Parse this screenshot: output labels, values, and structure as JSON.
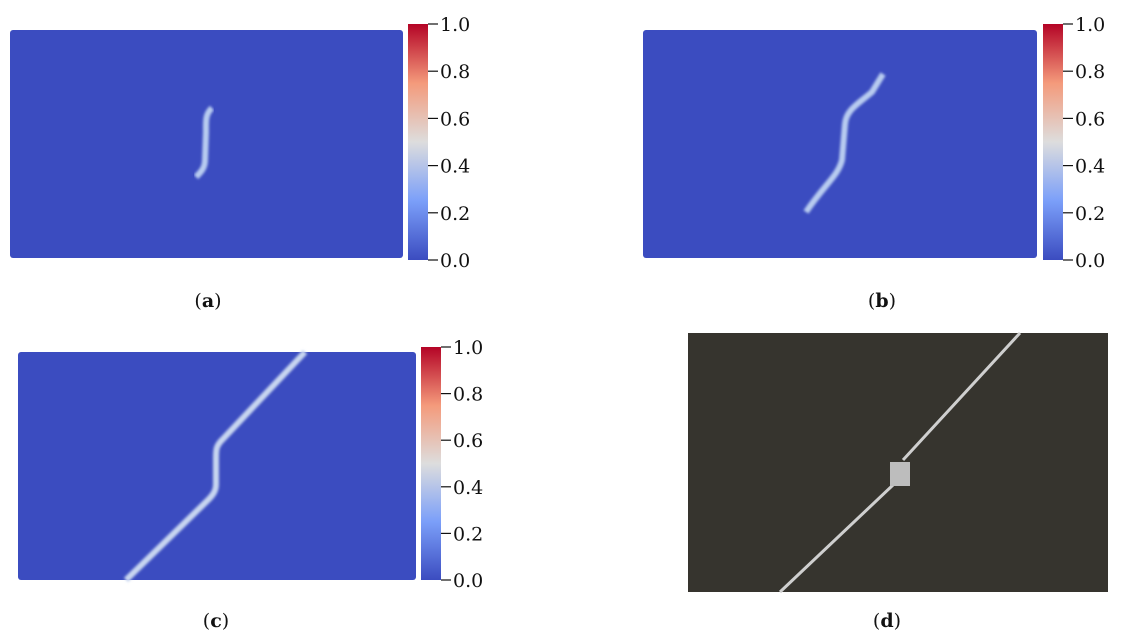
{
  "panels": [
    {
      "caption": [
        "(",
        "a",
        ")"
      ],
      "colorbar": {
        "ticks": [
          {
            "value": 0,
            "label": "0.0"
          },
          {
            "value": 0.2,
            "label": "0.2"
          },
          {
            "value": 0.4,
            "label": "0.4"
          },
          {
            "value": 0.6,
            "label": "0.6"
          },
          {
            "value": 0.8,
            "label": "0.8"
          },
          {
            "value": 1,
            "label": "1.0"
          }
        ]
      }
    },
    {
      "caption": [
        "(",
        "b",
        ")"
      ],
      "colorbar": {
        "ticks": [
          {
            "value": 0,
            "label": "0.0"
          },
          {
            "value": 0.2,
            "label": "0.2"
          },
          {
            "value": 0.4,
            "label": "0.4"
          },
          {
            "value": 0.6,
            "label": "0.6"
          },
          {
            "value": 0.8,
            "label": "0.8"
          },
          {
            "value": 1,
            "label": "1.0"
          }
        ]
      }
    },
    {
      "caption": [
        "(",
        "c",
        ")"
      ],
      "colorbar": {
        "ticks": [
          {
            "value": 0,
            "label": "0.0"
          },
          {
            "value": 0.2,
            "label": "0.2"
          },
          {
            "value": 0.4,
            "label": "0.4"
          },
          {
            "value": 0.6,
            "label": "0.6"
          },
          {
            "value": 0.8,
            "label": "0.8"
          },
          {
            "value": 1,
            "label": "1.0"
          }
        ]
      }
    },
    {
      "caption": [
        "(",
        "d",
        ")"
      ]
    }
  ]
}
